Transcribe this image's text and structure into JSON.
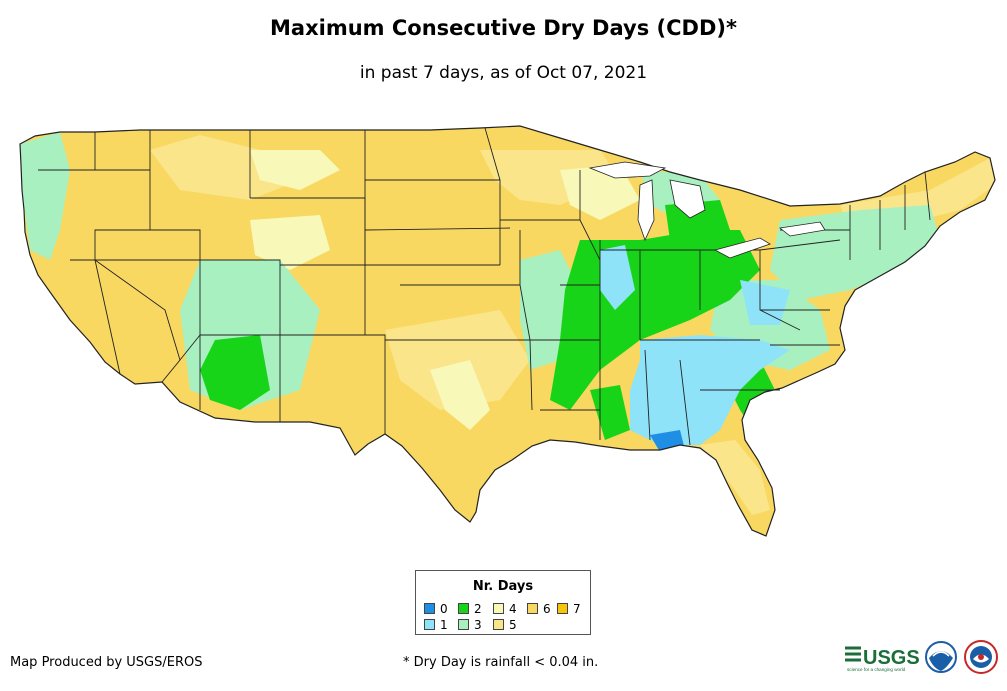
{
  "header": {
    "title": "Maximum Consecutive Dry Days (CDD)*",
    "subtitle": "in past 7 days, as of Oct 07, 2021"
  },
  "legend": {
    "title": "Nr. Days",
    "items": [
      {
        "label": "0",
        "color": "#1f8fe6"
      },
      {
        "label": "1",
        "color": "#8fe3f9"
      },
      {
        "label": "2",
        "color": "#18d418"
      },
      {
        "label": "3",
        "color": "#a8f0c0"
      },
      {
        "label": "4",
        "color": "#f8f8b8"
      },
      {
        "label": "5",
        "color": "#fbe58a"
      },
      {
        "label": "6",
        "color": "#f9d862"
      },
      {
        "label": "7",
        "color": "#f6c40a"
      }
    ]
  },
  "footer": {
    "credit": "Map Produced by USGS/EROS",
    "footnote": "* Dry Day is rainfall < 0.04 in.",
    "logos": [
      "usgs-logo",
      "noaa-logo",
      "nws-logo"
    ],
    "usgs_text": "USGS",
    "usgs_tagline": "science for a changing world"
  },
  "colors": {
    "border": "#222222",
    "usgs_green": "#1b6e3a",
    "noaa_blue": "#1a5ea8"
  }
}
